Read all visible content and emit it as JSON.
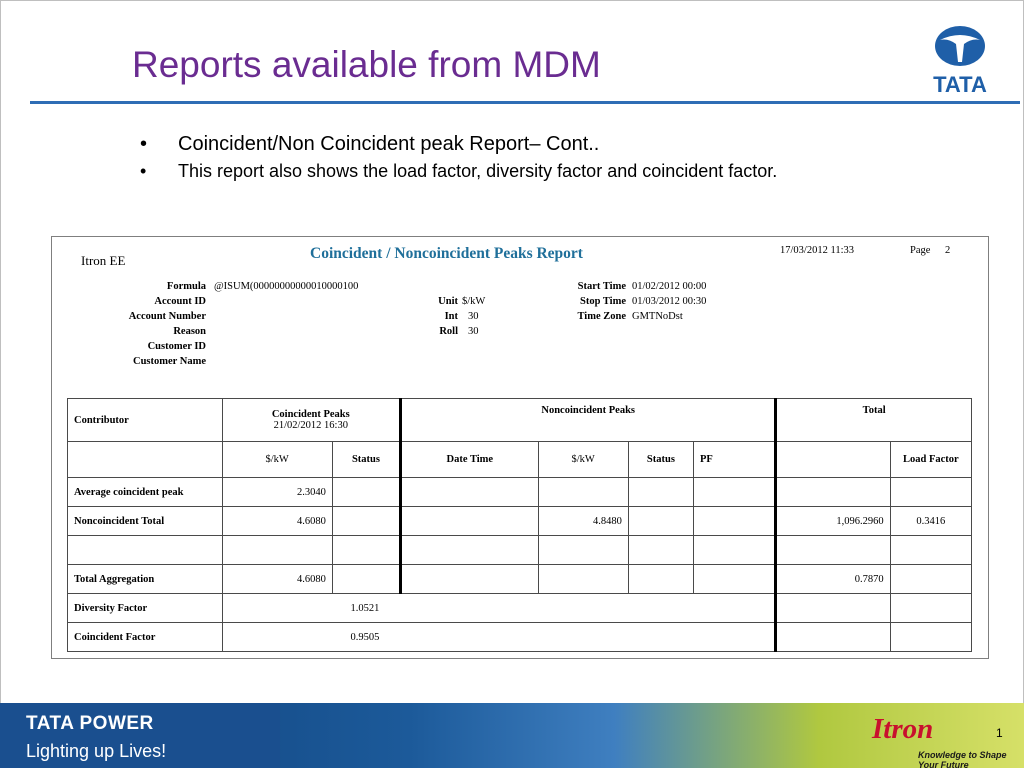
{
  "slide": {
    "title": "Reports available from MDM",
    "bullets": [
      "Coincident/Non Coincident peak Report– Cont..",
      "This report also shows the load factor, diversity factor and coincident factor."
    ],
    "bullet_glyph": "•",
    "page_number": "1"
  },
  "logo": {
    "brand": "TATA"
  },
  "report": {
    "company": "Itron EE",
    "title": "Coincident / Noncoincident Peaks Report",
    "printed": "17/03/2012 11:33",
    "page_label": "Page",
    "page_value": "2",
    "fields_left": [
      {
        "label": "Formula",
        "value": "@ISUM(00000000000010000100"
      },
      {
        "label": "Account ID",
        "value": ""
      },
      {
        "label": "Account Number",
        "value": ""
      },
      {
        "label": "Reason",
        "value": ""
      },
      {
        "label": "Customer ID",
        "value": ""
      },
      {
        "label": "Customer Name",
        "value": ""
      }
    ],
    "fields_mid": [
      {
        "label": "Unit",
        "value": "$/kW"
      },
      {
        "label": "Int",
        "value": "30"
      },
      {
        "label": "Roll",
        "value": "30"
      }
    ],
    "fields_right": [
      {
        "label": "Start Time",
        "value": "01/02/2012 00:00"
      },
      {
        "label": "Stop Time",
        "value": "01/03/2012 00:30"
      },
      {
        "label": "Time Zone",
        "value": "GMTNoDst"
      }
    ],
    "table": {
      "header1": {
        "contributor": "Contributor",
        "coincident": "Coincident Peaks",
        "coincident_date": "21/02/2012 16:30",
        "noncoincident": "Noncoincident Peaks",
        "total": "Total"
      },
      "header2": [
        "$/kW",
        "Status",
        "Date Time",
        "$/kW",
        "Status",
        "PF",
        "Load Factor"
      ],
      "rows": {
        "avg": {
          "label": "Average coincident peak",
          "c_kw": "2.3040"
        },
        "nonc": {
          "label": "Noncoincident Total",
          "c_kw": "4.6080",
          "n_kw": "4.8480",
          "total": "1,096.2960",
          "lf": "0.3416"
        },
        "agg": {
          "label": "Total Aggregation",
          "c_kw": "4.6080",
          "total": "0.7870"
        },
        "div": {
          "label": "Diversity Factor",
          "value": "1.0521"
        },
        "coinc": {
          "label": "Coincident Factor",
          "value": "0.9505"
        }
      }
    }
  },
  "footer": {
    "company": "TATA POWER",
    "tagline": "Lighting up Lives!",
    "partner": "Itron",
    "partner_tagline": "Knowledge to Shape Your Future"
  },
  "colors": {
    "title": "#6a2c91",
    "rule": "#2f6db5",
    "report_title": "#1f6f9a",
    "itron_red": "#c8102e",
    "footer_blue": "#1a4f8f"
  }
}
